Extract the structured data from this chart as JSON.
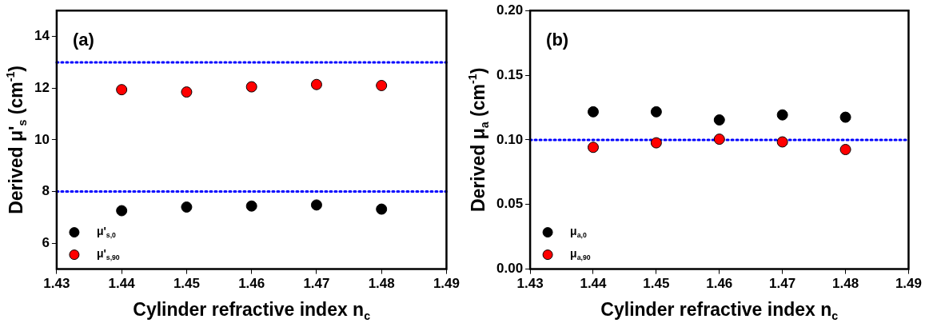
{
  "chart_data": [
    {
      "type": "scatter",
      "xlabel": "Cylinder refractive index n$_{c}$",
      "ylabel": "Derived μ'$_{s}$ (cm$^{-1}$)",
      "annotations": [
        "(a)"
      ],
      "x": [
        1.44,
        1.45,
        1.46,
        1.47,
        1.48
      ],
      "series": [
        {
          "name": "μ'$_{s,0}$",
          "color": "#000000",
          "values": [
            7.26,
            7.4,
            7.44,
            7.48,
            7.32
          ]
        },
        {
          "name": "μ'$_{s,90}$",
          "color": "#ff0000",
          "values": [
            11.94,
            11.85,
            12.05,
            12.14,
            12.1
          ]
        }
      ],
      "xlim": [
        1.43,
        1.49
      ],
      "xticks": [
        1.43,
        1.44,
        1.45,
        1.46,
        1.47,
        1.48,
        1.49
      ],
      "ylim": [
        5,
        15
      ],
      "yticks": [
        6,
        8,
        10,
        12,
        14
      ],
      "ref_lines": [
        {
          "axis": "y",
          "value": 13,
          "color": "#0000ff",
          "line_style": "dotted"
        },
        {
          "axis": "y",
          "value": 8,
          "color": "#0000ff",
          "line_style": "dotted"
        }
      ],
      "grid": false,
      "legend": "bottom left",
      "marker": "circle"
    },
    {
      "type": "scatter",
      "xlabel": "Cylinder refractive index n$_{c}$",
      "ylabel": "Derived μ$_{a}$ (cm$^{-1}$)",
      "annotations": [
        "(b)"
      ],
      "x": [
        1.44,
        1.45,
        1.46,
        1.47,
        1.48
      ],
      "series": [
        {
          "name": "μ$_{a,0}$",
          "color": "#000000",
          "values": [
            0.1217,
            0.1217,
            0.1154,
            0.1193,
            0.1175
          ]
        },
        {
          "name": "μ$_{a,90}$",
          "color": "#ff0000",
          "values": [
            0.0942,
            0.0977,
            0.1005,
            0.0984,
            0.0925
          ]
        }
      ],
      "xlim": [
        1.43,
        1.49
      ],
      "xticks": [
        1.43,
        1.44,
        1.45,
        1.46,
        1.47,
        1.48,
        1.49
      ],
      "ylim": [
        0,
        0.2
      ],
      "yticks": [
        {
          "value": 0,
          "label": "0.00"
        },
        0.05,
        {
          "value": 0.1,
          "label": "0.10"
        },
        0.15,
        {
          "value": 0.2,
          "label": "0.20"
        }
      ],
      "ref_lines": [
        {
          "axis": "y",
          "value": 0.1,
          "color": "#0000ff",
          "line_style": "dotted"
        }
      ],
      "grid": false,
      "legend": "bottom left",
      "marker": "circle"
    }
  ]
}
